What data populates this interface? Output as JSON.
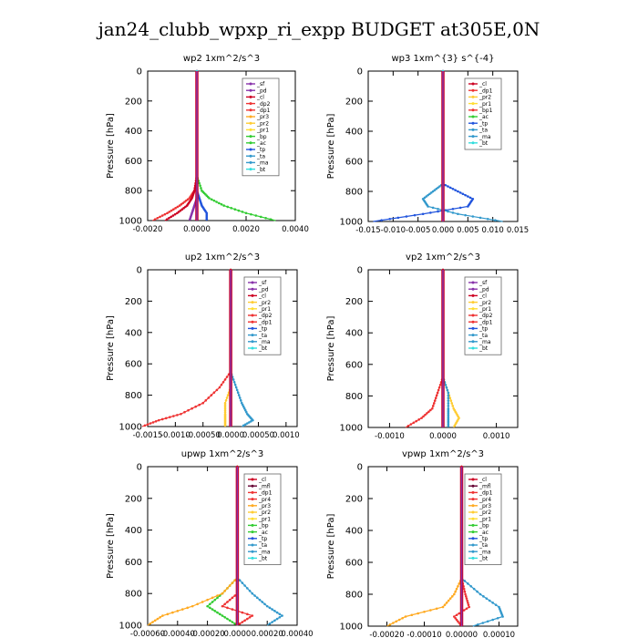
{
  "title": "jan24_clubb_wpxp_ri_expp  BUDGET at305E,0N",
  "colors": {
    "sf": "#8833aa",
    "pd": "#8833aa",
    "cl": "#cc0022",
    "dp2": "#ee3333",
    "dp1": "#ee3333",
    "pr4": "#ee3333",
    "pr3": "#ffaa22",
    "pr2": "#ffcc33",
    "pr1": "#ffdd33",
    "bp1": "#ee3333",
    "bp": "#33cc33",
    "ac": "#33cc33",
    "tp": "#2255dd",
    "ta": "#3399cc",
    "ma": "#3399cc",
    "bt": "#33dddd",
    "mfl": "#660033"
  },
  "chart_data": [
    {
      "type": "line",
      "title": "wp2   1xm^2/s^3",
      "ylabel": "Pressure  [hPa]",
      "xlim": [
        -0.002,
        0.004
      ],
      "ylim": [
        1000,
        0
      ],
      "xticks": [
        -0.002,
        0.0,
        0.002,
        0.004
      ],
      "xtick_labels": [
        "-0.0020",
        "0.0000",
        "0.0020",
        "0.0040"
      ],
      "yticks": [
        0,
        200,
        400,
        600,
        800,
        1000
      ],
      "legend": [
        "_sf",
        "_pd",
        "_cl",
        "_dp2",
        "_dp1",
        "_pr3",
        "_pr2",
        "_pr1",
        "_bp",
        "_ac",
        "_tp",
        "_ta",
        "_ma",
        "_bt"
      ],
      "legend_keys": [
        "sf",
        "pd",
        "cl",
        "dp2",
        "dp1",
        "pr3",
        "pr2",
        "pr1",
        "bp",
        "ac",
        "tp",
        "ta",
        "ma",
        "bt"
      ],
      "y": [
        0,
        700,
        800,
        850,
        900,
        950,
        1000
      ],
      "series": [
        {
          "key": "ac",
          "values": [
            0,
            0,
            0.0002,
            0.0005,
            0.0011,
            0.002,
            0.0032
          ]
        },
        {
          "key": "dp1",
          "values": [
            0,
            0,
            -0.0001,
            -0.0003,
            -0.0007,
            -0.0012,
            -0.0018
          ]
        },
        {
          "key": "cl",
          "values": [
            0,
            0,
            -0.0001,
            -0.0002,
            -0.0004,
            -0.0008,
            -0.0013
          ]
        },
        {
          "key": "tp",
          "values": [
            0,
            0,
            0,
            0.0001,
            0.0002,
            0.0004,
            0.0004
          ]
        },
        {
          "key": "pd",
          "values": [
            0,
            0,
            0,
            0,
            -0.0001,
            -0.0002,
            -0.0003
          ]
        },
        {
          "key": "bt",
          "values": [
            0,
            0,
            0,
            0,
            0,
            0,
            0
          ]
        }
      ]
    },
    {
      "type": "line",
      "title": "wp3   1xm^{3} s^{-4}",
      "ylabel": "Pressure  [hPa]",
      "xlim": [
        -0.015,
        0.015
      ],
      "ylim": [
        1000,
        0
      ],
      "xticks": [
        -0.015,
        -0.01,
        -0.005,
        0.0,
        0.005,
        0.01,
        0.015
      ],
      "xtick_labels": [
        "-0.015",
        "-0.010",
        "-0.005",
        "0.000",
        "0.005",
        "0.010",
        "0.015"
      ],
      "yticks": [
        0,
        200,
        400,
        600,
        800,
        1000
      ],
      "legend": [
        "_cl",
        "_dp1",
        "_pr2",
        "_pr1",
        "_bp1",
        "_ac",
        "_tp",
        "_ta",
        "_ma",
        "_bt"
      ],
      "legend_keys": [
        "cl",
        "dp1",
        "pr2",
        "pr1",
        "bp1",
        "ac",
        "tp",
        "ta",
        "ma",
        "bt"
      ],
      "y": [
        0,
        750,
        800,
        850,
        900,
        950,
        1000
      ],
      "series": [
        {
          "key": "tp",
          "values": [
            0,
            0,
            0.003,
            0.006,
            0.005,
            -0.004,
            -0.014
          ]
        },
        {
          "key": "ta",
          "values": [
            0,
            0,
            -0.002,
            -0.004,
            -0.003,
            0.003,
            0.012
          ]
        },
        {
          "key": "cl",
          "values": [
            0,
            0,
            0,
            0,
            0,
            0,
            0
          ]
        },
        {
          "key": "bt",
          "values": [
            0,
            0,
            0,
            0,
            0,
            0,
            0
          ]
        }
      ]
    },
    {
      "type": "line",
      "title": "up2   1xm^2/s^3",
      "ylabel": "Pressure  [hPa]",
      "xlim": [
        -0.0015,
        0.0012
      ],
      "ylim": [
        1000,
        0
      ],
      "xticks": [
        -0.0015,
        -0.001,
        -0.0005,
        0.0,
        0.0005,
        0.001
      ],
      "xtick_labels": [
        "-0.0015",
        "-0.0010",
        "-0.00050",
        "0.0000",
        "0.00050",
        "0.0010"
      ],
      "yticks": [
        0,
        200,
        400,
        600,
        800,
        1000
      ],
      "legend": [
        "_sf",
        "_pd",
        "_cl",
        "_pr2",
        "_pr1",
        "_dp2",
        "_dp1",
        "_tp",
        "_ta",
        "_ma",
        "_bt"
      ],
      "legend_keys": [
        "sf",
        "pd",
        "cl",
        "pr2",
        "pr1",
        "dp2",
        "dp1",
        "tp",
        "ta",
        "ma",
        "bt"
      ],
      "y": [
        0,
        650,
        750,
        850,
        920,
        960,
        1000
      ],
      "series": [
        {
          "key": "dp1",
          "values": [
            0,
            0,
            -0.0002,
            -0.0005,
            -0.0009,
            -0.0013,
            -0.0016
          ]
        },
        {
          "key": "ta",
          "values": [
            0,
            0,
            0.0001,
            0.0002,
            0.0003,
            0.0004,
            0.0002
          ]
        },
        {
          "key": "pr2",
          "values": [
            0,
            0,
            0,
            -0.0001,
            -0.0001,
            -0.0001,
            -0.0001
          ]
        },
        {
          "key": "cl",
          "values": [
            0,
            0,
            0,
            0,
            0,
            0,
            0
          ]
        }
      ]
    },
    {
      "type": "line",
      "title": "vp2   1xm^2/s^3",
      "ylabel": "Pressure  [hPa]",
      "xlim": [
        -0.0014,
        0.0014
      ],
      "ylim": [
        1000,
        0
      ],
      "xticks": [
        -0.001,
        0.0,
        0.001
      ],
      "xtick_labels": [
        "-0.0010",
        "0.0000",
        "0.0010"
      ],
      "yticks": [
        0,
        200,
        400,
        600,
        800,
        1000
      ],
      "legend": [
        "_sf",
        "_pd",
        "_cl",
        "_pr2",
        "_pr1",
        "_dp2",
        "_dp1",
        "_tp",
        "_ta",
        "_ma",
        "_bt"
      ],
      "legend_keys": [
        "sf",
        "pd",
        "cl",
        "pr2",
        "pr1",
        "dp2",
        "dp1",
        "tp",
        "ta",
        "ma",
        "bt"
      ],
      "y": [
        0,
        680,
        780,
        880,
        940,
        1000
      ],
      "series": [
        {
          "key": "dp1",
          "values": [
            0,
            0,
            -0.0001,
            -0.0002,
            -0.0004,
            -0.0007
          ]
        },
        {
          "key": "pr2",
          "values": [
            0,
            0,
            0.0001,
            0.0002,
            0.0003,
            0.0002
          ]
        },
        {
          "key": "ta",
          "values": [
            0,
            0,
            0.0001,
            0.0001,
            0.0001,
            0.0001
          ]
        },
        {
          "key": "cl",
          "values": [
            0,
            0,
            0,
            0,
            0,
            0
          ]
        }
      ]
    },
    {
      "type": "line",
      "title": "upwp   1xm^2/s^3",
      "ylabel": "Pressure  [hPa]",
      "xlim": [
        -0.0006,
        0.0004
      ],
      "ylim": [
        1000,
        0
      ],
      "xticks": [
        -0.0006,
        -0.0004,
        -0.0002,
        0.0,
        0.0002,
        0.0004
      ],
      "xtick_labels": [
        "-0.00060",
        "-0.00040",
        "-0.00020",
        "0.0000",
        "0.00020",
        "0.00040"
      ],
      "yticks": [
        0,
        200,
        400,
        600,
        800,
        1000
      ],
      "legend": [
        "_cl",
        "_mfl",
        "_dp1",
        "_pr4",
        "_pr3",
        "_pr2",
        "_pr1",
        "_bp",
        "_ac",
        "_tp",
        "_ta",
        "_ma",
        "_bt"
      ],
      "legend_keys": [
        "cl",
        "mfl",
        "dp1",
        "pr4",
        "pr3",
        "pr2",
        "pr1",
        "bp",
        "ac",
        "tp",
        "ta",
        "ma",
        "bt"
      ],
      "y": [
        0,
        700,
        800,
        880,
        940,
        1000
      ],
      "series": [
        {
          "key": "ta",
          "values": [
            0,
            0,
            0.0001,
            0.0002,
            0.0003,
            0.0002
          ]
        },
        {
          "key": "ac",
          "values": [
            0,
            0,
            -0.0001,
            -0.0002,
            -0.0001,
            0.0
          ]
        },
        {
          "key": "pr3",
          "values": [
            0,
            0,
            -0.0001,
            -0.0003,
            -0.0005,
            -0.0006
          ]
        },
        {
          "key": "dp1",
          "values": [
            0,
            0,
            0.0,
            -0.0001,
            0.0001,
            0.0
          ]
        },
        {
          "key": "cl",
          "values": [
            0,
            0,
            0,
            0,
            0,
            0
          ]
        }
      ]
    },
    {
      "type": "line",
      "title": "vpwp   1xm^2/s^3",
      "ylabel": "Pressure  [hPa]",
      "xlim": [
        -0.00025,
        0.00015
      ],
      "ylim": [
        1000,
        0
      ],
      "xticks": [
        -0.0002,
        -0.0001,
        0.0,
        0.0001
      ],
      "xtick_labels": [
        "-0.00020",
        "-0.00010",
        "0.00000",
        "0.00010"
      ],
      "yticks": [
        0,
        200,
        400,
        600,
        800,
        1000
      ],
      "legend": [
        "_cl",
        "_mfl",
        "_dp1",
        "_pr4",
        "_pr3",
        "_pr2",
        "_pr1",
        "_bp",
        "_ac",
        "_tp",
        "_ta",
        "_ma",
        "_bt"
      ],
      "legend_keys": [
        "cl",
        "mfl",
        "dp1",
        "pr4",
        "pr3",
        "pr2",
        "pr1",
        "bp",
        "ac",
        "tp",
        "ta",
        "ma",
        "bt"
      ],
      "y": [
        0,
        700,
        800,
        880,
        940,
        1000
      ],
      "series": [
        {
          "key": "ta",
          "values": [
            0,
            0,
            5e-05,
            0.0001,
            0.00011,
            3e-05
          ]
        },
        {
          "key": "pr3",
          "values": [
            0,
            0,
            -2e-05,
            -5e-05,
            -0.00015,
            -0.0002
          ]
        },
        {
          "key": "dp1",
          "values": [
            0,
            0,
            1e-05,
            2e-05,
            -2e-05,
            0.0
          ]
        },
        {
          "key": "cl",
          "values": [
            0,
            0,
            0,
            0,
            0,
            0
          ]
        }
      ]
    }
  ]
}
